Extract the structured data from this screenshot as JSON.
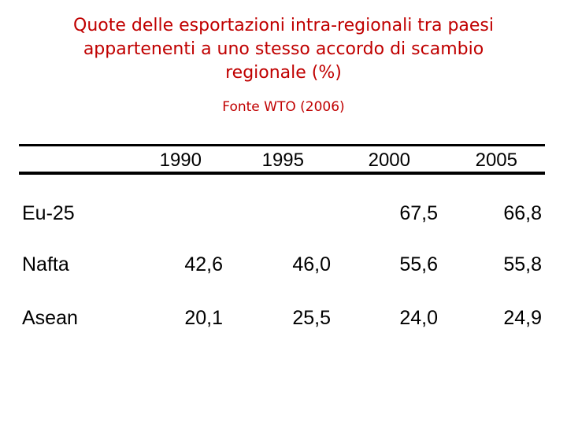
{
  "title": {
    "lines": [
      "Quote delle esportazioni intra-regionali tra  paesi",
      "appartenenti a uno stesso accordo di scambio",
      "regionale (%)"
    ]
  },
  "source": "Fonte WTO (2006)",
  "table": {
    "columns": [
      "1990",
      "1995",
      "2000",
      "2005"
    ],
    "rows": [
      {
        "label": "Eu-25",
        "values": [
          "",
          "",
          "67,5",
          "66,8"
        ]
      },
      {
        "label": "Nafta",
        "values": [
          "42,6",
          "46,0",
          "55,6",
          "55,8"
        ]
      },
      {
        "label": "Asean",
        "values": [
          "20,1",
          "25,5",
          "24,0",
          "24,9"
        ]
      }
    ]
  }
}
